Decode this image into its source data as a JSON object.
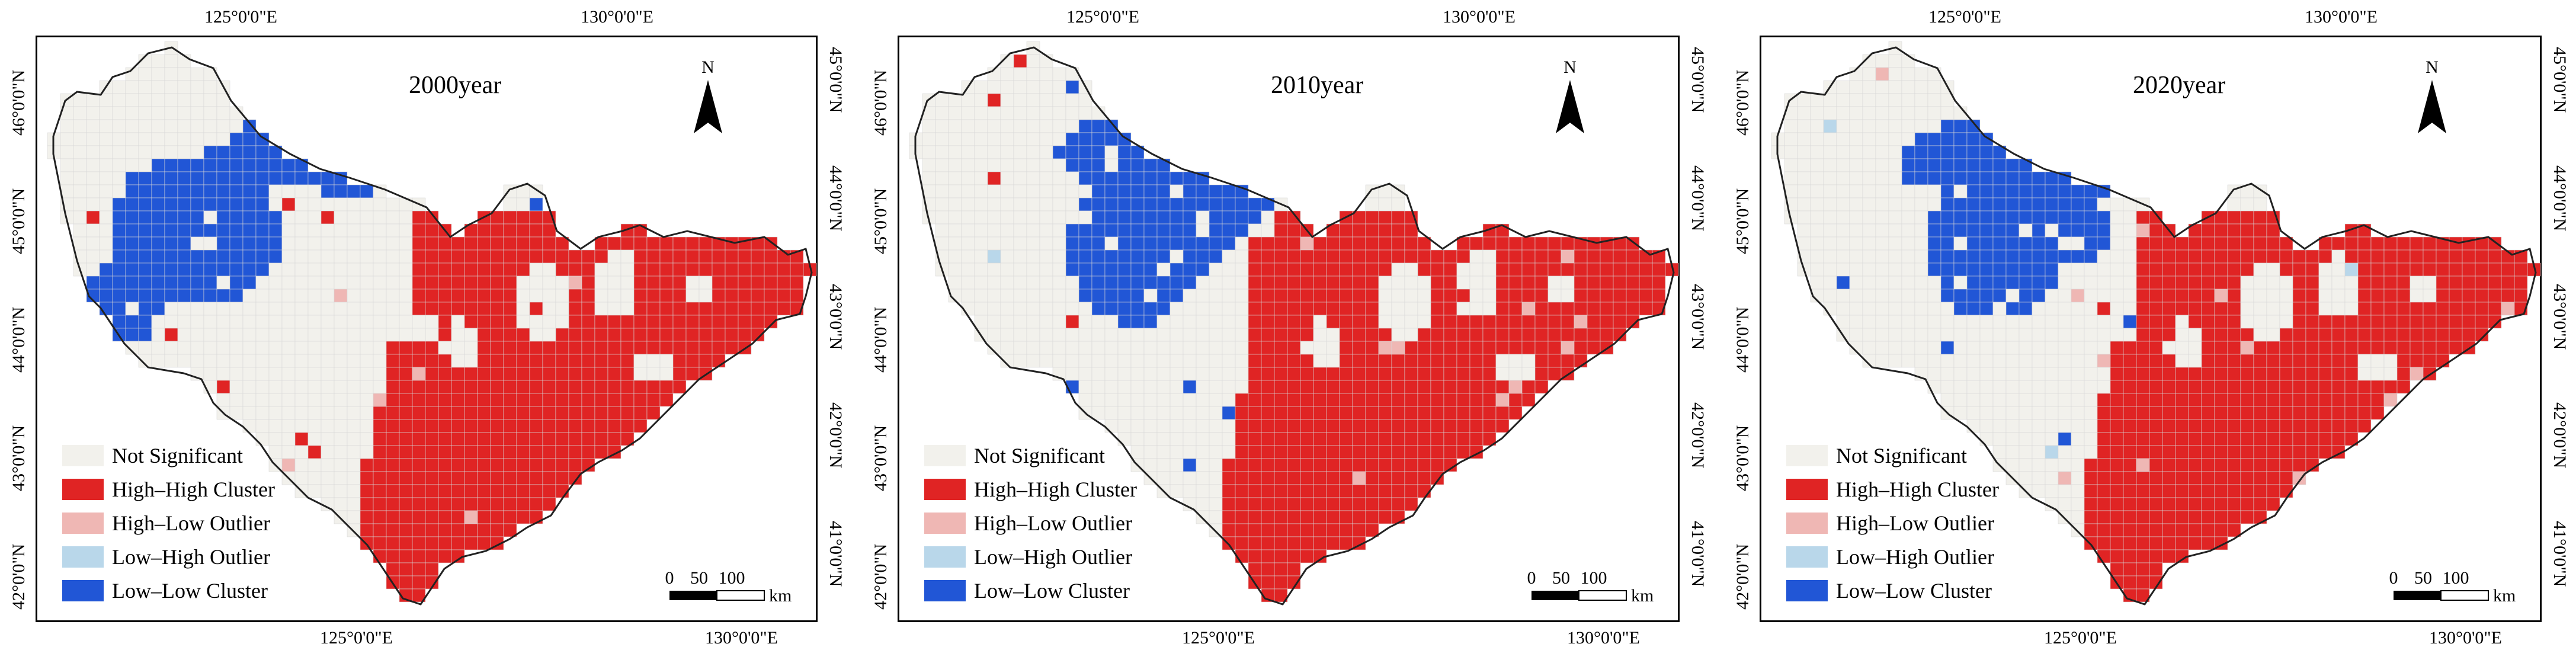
{
  "panels": [
    {
      "year_label": "2000year"
    },
    {
      "year_label": "2010year"
    },
    {
      "year_label": "2020year"
    }
  ],
  "axes": {
    "top_ticks": [
      "125°0'0\"E",
      "130°0'0\"E"
    ],
    "bottom_ticks": [
      "125°0'0\"E",
      "130°0'0\"E"
    ],
    "left_ticks": [
      "46°0'0\"N",
      "45°0'0\"N",
      "44°0'0\"N",
      "43°0'0\"N",
      "42°0'0\"N"
    ],
    "right_ticks": [
      "45°0'0\"N",
      "44°0'0\"N",
      "43°0'0\"N",
      "42°0'0\"N",
      "41°0'0\"N"
    ]
  },
  "north_arrow": {
    "label": "N"
  },
  "scale_bar": {
    "labels": [
      "0",
      "50",
      "100"
    ],
    "unit": "km"
  },
  "legend": [
    {
      "label": "Not Significant",
      "color": "#f2f1ec"
    },
    {
      "label": "High–High Cluster",
      "color": "#e02424"
    },
    {
      "label": "High–Low Outlier",
      "color": "#efb7b4"
    },
    {
      "label": "Low–High Outlier",
      "color": "#b9d7ea"
    },
    {
      "label": "Low–Low Cluster",
      "color": "#2156d6"
    }
  ]
}
